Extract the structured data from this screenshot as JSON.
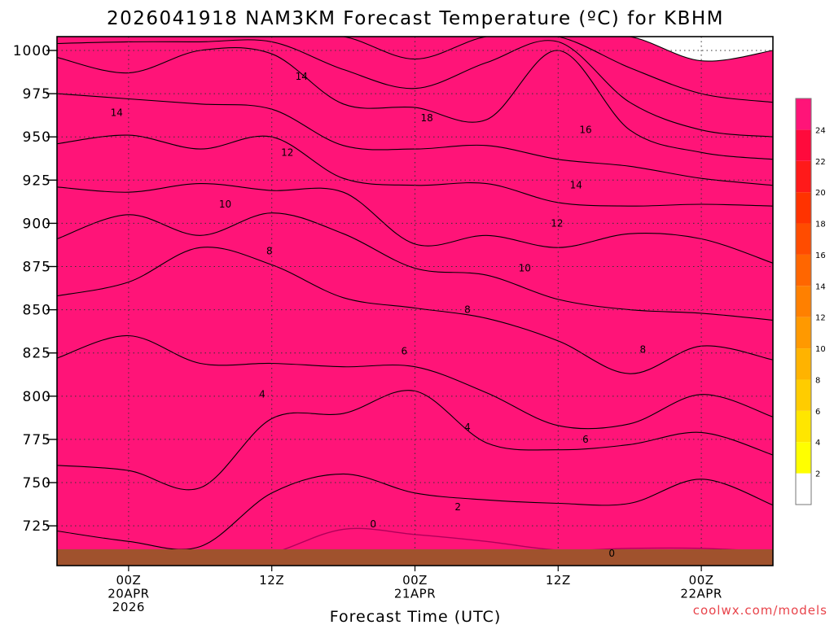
{
  "chart_data": {
    "type": "heatmap",
    "title": "2026041918 NAM3KM Forecast Temperature (ºC) for KBHM",
    "xlabel": "Forecast Time (UTC)",
    "ylabel": "",
    "credit": "coolwx.com/models",
    "x_units": "hours since 2026-04-19 18Z",
    "xlim": [
      0,
      60
    ],
    "ylim": [
      1008,
      702
    ],
    "y_ticks": [
      725,
      750,
      775,
      800,
      825,
      850,
      875,
      900,
      925,
      950,
      975,
      1000
    ],
    "y_tick_labels": [
      "725",
      "750",
      "775",
      "800",
      "825",
      "850",
      "875",
      "900",
      "925",
      "950",
      "975",
      "1000"
    ],
    "x_ticks": [
      {
        "hour": 6,
        "lines": [
          "00Z",
          "20APR",
          "2026"
        ]
      },
      {
        "hour": 18,
        "lines": [
          "12Z"
        ]
      },
      {
        "hour": 30,
        "lines": [
          "00Z",
          "21APR"
        ]
      },
      {
        "hour": 42,
        "lines": [
          "12Z"
        ]
      },
      {
        "hour": 54,
        "lines": [
          "00Z",
          "22APR"
        ]
      }
    ],
    "colorbar": {
      "levels": [
        0,
        2,
        4,
        6,
        8,
        10,
        12,
        14,
        16,
        18,
        20,
        22,
        24,
        26
      ],
      "tick_labels": [
        "2",
        "4",
        "6",
        "8",
        "10",
        "12",
        "14",
        "16",
        "18",
        "20",
        "22",
        "24"
      ],
      "colors": [
        "#ffffff",
        "#ffff00",
        "#ffe600",
        "#ffcc00",
        "#ffb300",
        "#ff9900",
        "#ff8000",
        "#ff6600",
        "#ff4c00",
        "#ff3300",
        "#ff1a1a",
        "#ff0a3c",
        "#ff1478"
      ]
    },
    "zero_contour_color": "#b0005a",
    "contour_color": "#000000",
    "ground_color": "#a0522d",
    "grid": true,
    "time_hours": [
      0,
      6,
      12,
      18,
      24,
      30,
      36,
      42,
      48,
      54,
      60
    ],
    "isotherms": [
      {
        "value": 0,
        "label": "0",
        "pressure": [
          700,
          700,
          700,
          709,
          723,
          720,
          716,
          711,
          712,
          712,
          710
        ]
      },
      {
        "value": 2,
        "label": "2",
        "pressure": [
          722,
          716,
          713,
          744,
          755,
          744,
          740,
          738,
          738,
          752,
          737
        ]
      },
      {
        "value": 4,
        "label": "4",
        "pressure": [
          760,
          757,
          747,
          787,
          790,
          803,
          773,
          769,
          772,
          779,
          766
        ]
      },
      {
        "value": 6,
        "label": "6",
        "pressure": [
          822,
          835,
          819,
          819,
          817,
          817,
          802,
          783,
          784,
          801,
          788
        ]
      },
      {
        "value": 8,
        "label": "8",
        "pressure": [
          858,
          866,
          886,
          876,
          857,
          851,
          845,
          832,
          813,
          829,
          821
        ]
      },
      {
        "value": 10,
        "label": "10",
        "pressure": [
          891,
          905,
          893,
          906,
          894,
          874,
          870,
          856,
          850,
          848,
          844
        ]
      },
      {
        "value": 12,
        "label": "12",
        "pressure": [
          921,
          918,
          923,
          919,
          918,
          888,
          893,
          886,
          894,
          891,
          877
        ]
      },
      {
        "value": 14,
        "label": "14",
        "pressure": [
          946,
          951,
          943,
          950,
          926,
          922,
          923,
          912,
          910,
          911,
          910
        ]
      },
      {
        "value": 16,
        "label": "16",
        "pressure": [
          975,
          972,
          969,
          966,
          945,
          943,
          945,
          937,
          933,
          926,
          922
        ]
      },
      {
        "value": 18,
        "label": "18",
        "pressure": [
          996,
          987,
          1000,
          998,
          969,
          967,
          960,
          1000,
          954,
          941,
          937
        ]
      },
      {
        "value": 20,
        "label": "20",
        "pressure": [
          1004,
          1005,
          1005,
          1005,
          989,
          978,
          993,
          1005,
          970,
          954,
          950
        ]
      },
      {
        "value": 22,
        "label": "22",
        "pressure": [
          1008,
          1008,
          1008,
          1008,
          1008,
          995,
          1008,
          1008,
          990,
          975,
          970
        ]
      },
      {
        "value": 24,
        "label": "24",
        "pressure": [
          1008,
          1008,
          1008,
          1008,
          1008,
          1008,
          1008,
          1008,
          1008,
          994,
          1000
        ]
      }
    ],
    "contour_labels": [
      {
        "text": "0",
        "hour": 26.5,
        "pressure": 726
      },
      {
        "text": "0",
        "hour": 46.5,
        "pressure": 709
      },
      {
        "text": "2",
        "hour": 33.6,
        "pressure": 736
      },
      {
        "text": "4",
        "hour": 17.2,
        "pressure": 801
      },
      {
        "text": "4",
        "hour": 34.4,
        "pressure": 782
      },
      {
        "text": "6",
        "hour": 29.1,
        "pressure": 826
      },
      {
        "text": "6",
        "hour": 44.3,
        "pressure": 775
      },
      {
        "text": "8",
        "hour": 17.8,
        "pressure": 884
      },
      {
        "text": "8",
        "hour": 34.4,
        "pressure": 850
      },
      {
        "text": "8",
        "hour": 49.1,
        "pressure": 827
      },
      {
        "text": "10",
        "hour": 14.1,
        "pressure": 911
      },
      {
        "text": "10",
        "hour": 39.2,
        "pressure": 874
      },
      {
        "text": "12",
        "hour": 19.3,
        "pressure": 941
      },
      {
        "text": "12",
        "hour": 41.9,
        "pressure": 900
      },
      {
        "text": "14",
        "hour": 5.0,
        "pressure": 964
      },
      {
        "text": "14",
        "hour": 20.5,
        "pressure": 985
      },
      {
        "text": "14",
        "hour": 43.5,
        "pressure": 922
      },
      {
        "text": "16",
        "hour": 44.3,
        "pressure": 954
      },
      {
        "text": "18",
        "hour": 31.0,
        "pressure": 961
      }
    ]
  }
}
